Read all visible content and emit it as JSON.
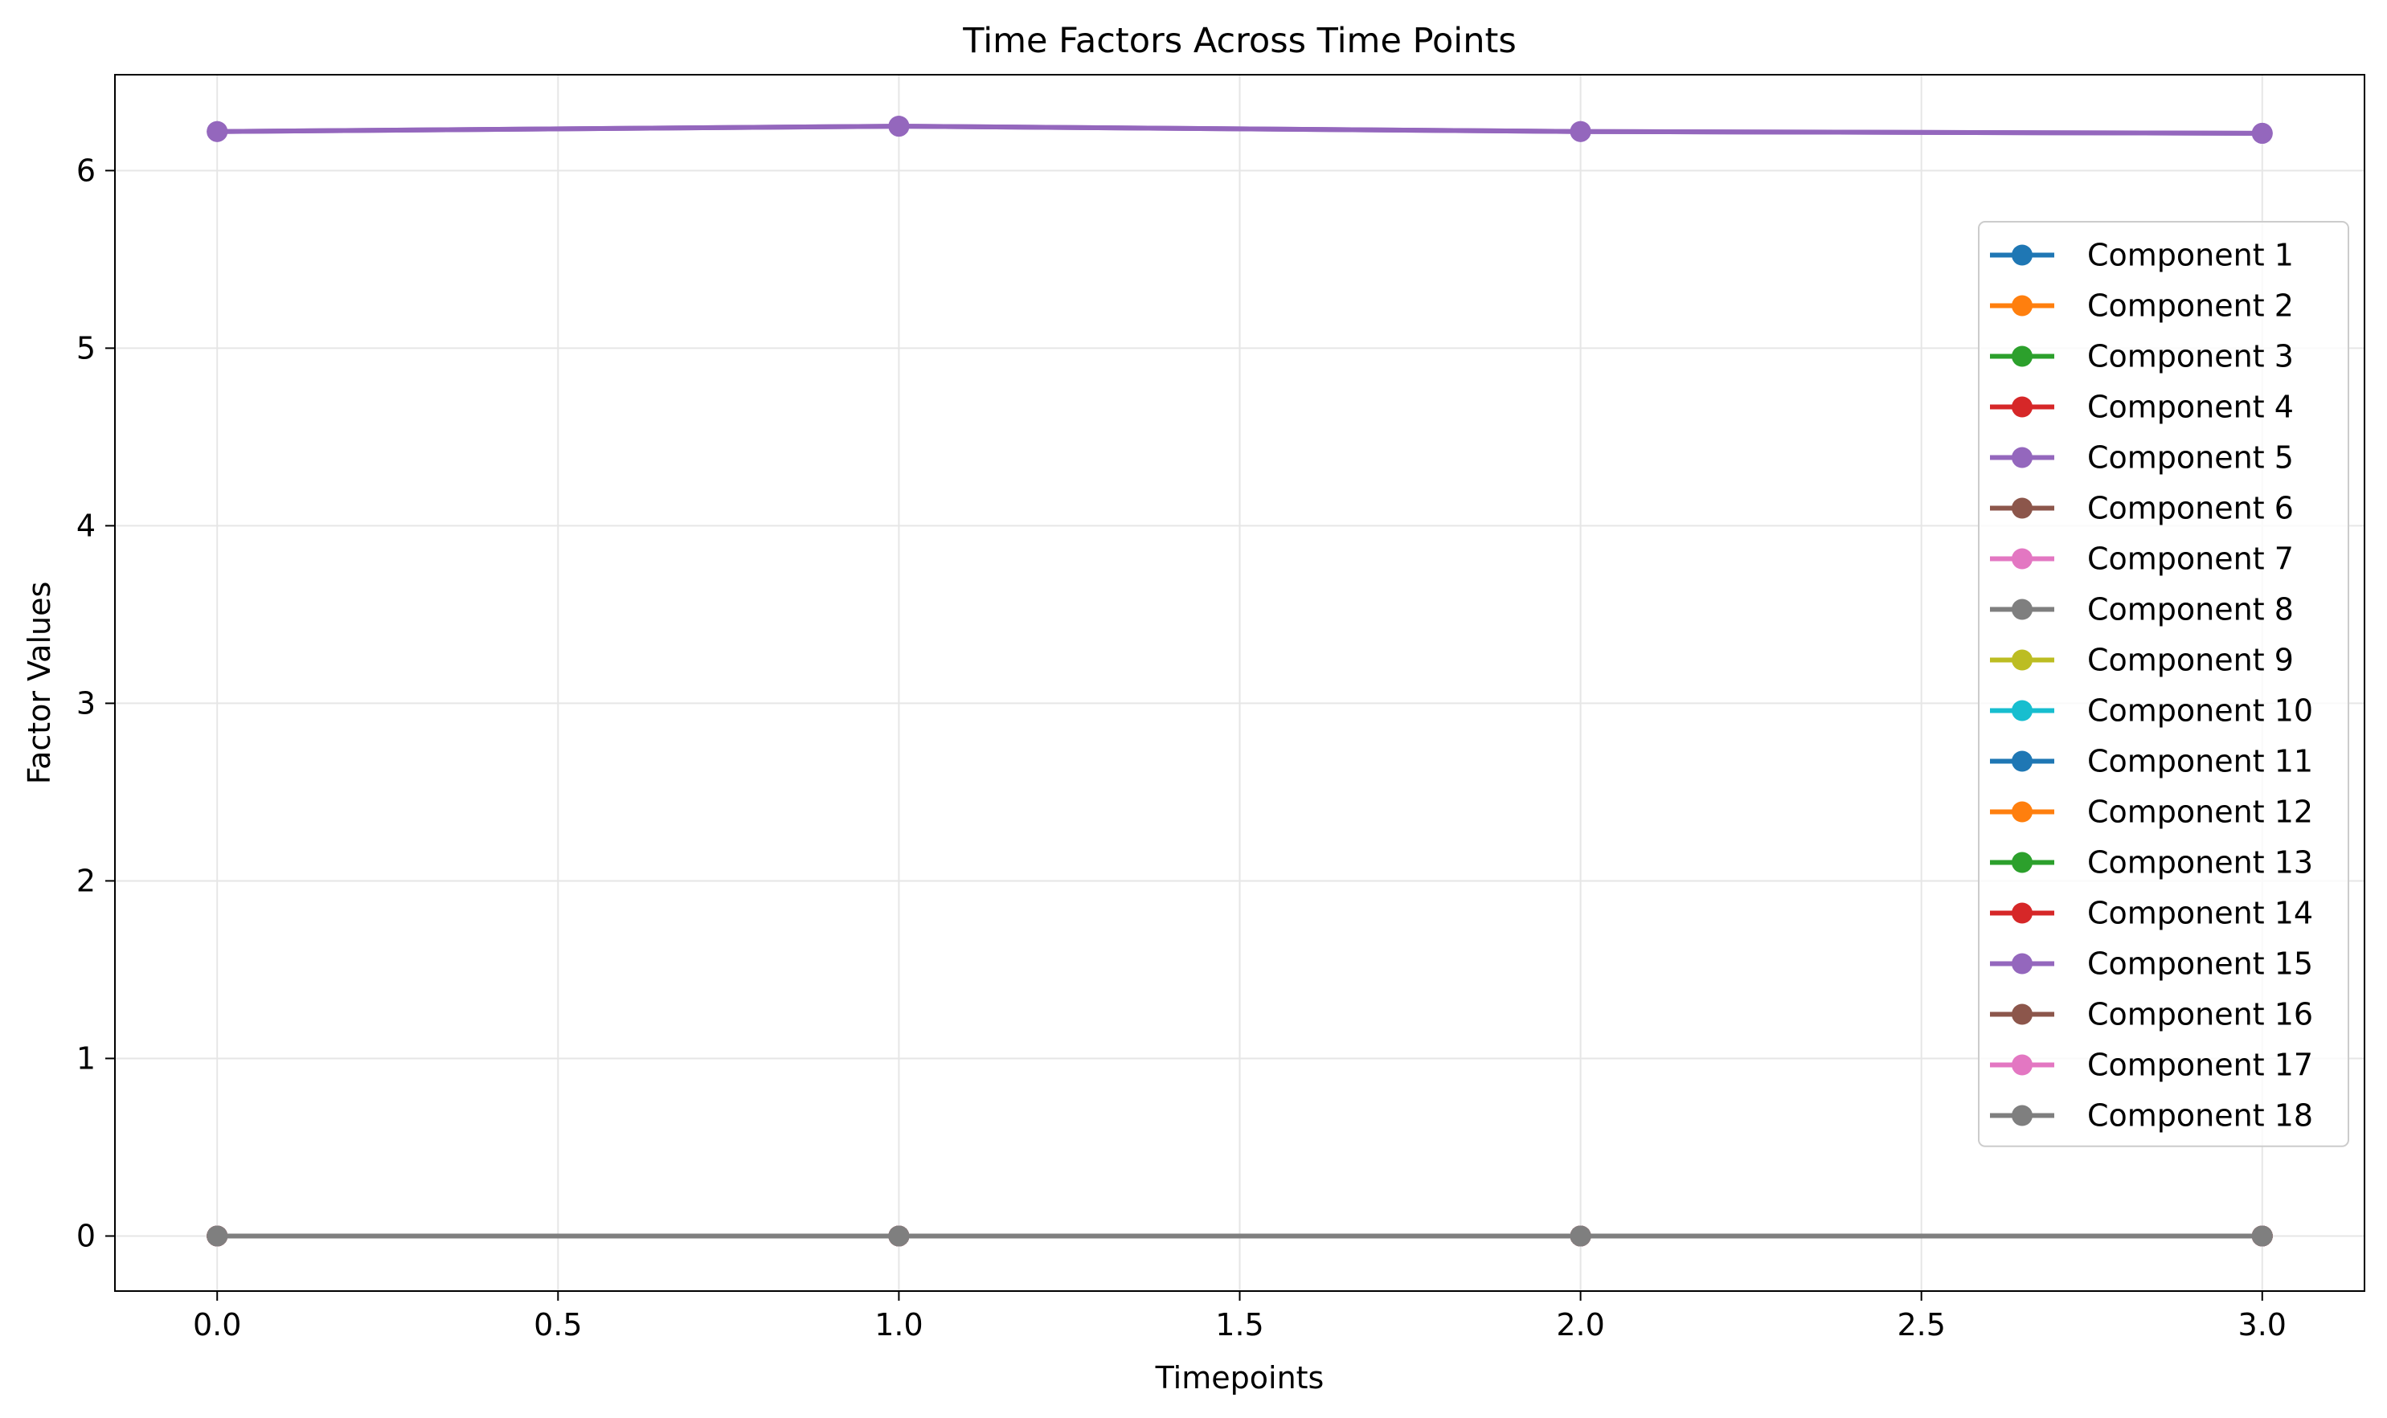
{
  "chart_data": {
    "type": "line",
    "title": "Time Factors Across Time Points",
    "xlabel": "Timepoints",
    "ylabel": "Factor Values",
    "x": [
      0,
      1,
      2,
      3
    ],
    "xlim": [
      -0.15,
      3.15
    ],
    "ylim": [
      -0.31,
      6.54
    ],
    "xticks": [
      0.0,
      0.5,
      1.0,
      1.5,
      2.0,
      2.5,
      3.0
    ],
    "xtick_labels": [
      "0.0",
      "0.5",
      "1.0",
      "1.5",
      "2.0",
      "2.5",
      "3.0"
    ],
    "yticks": [
      0,
      1,
      2,
      3,
      4,
      5,
      6
    ],
    "ytick_labels": [
      "0",
      "1",
      "2",
      "3",
      "4",
      "5",
      "6"
    ],
    "grid": true,
    "legend_position": "right",
    "series": [
      {
        "name": "Component 1",
        "color": "#1f77b4",
        "values": [
          0,
          0,
          0,
          0
        ]
      },
      {
        "name": "Component 2",
        "color": "#ff7f0e",
        "values": [
          0,
          0,
          0,
          0
        ]
      },
      {
        "name": "Component 3",
        "color": "#2ca02c",
        "values": [
          0,
          0,
          0,
          0
        ]
      },
      {
        "name": "Component 4",
        "color": "#d62728",
        "values": [
          0,
          0,
          0,
          0
        ]
      },
      {
        "name": "Component 5",
        "color": "#9467bd",
        "values": [
          6.22,
          6.25,
          6.22,
          6.21
        ]
      },
      {
        "name": "Component 6",
        "color": "#8c564b",
        "values": [
          0,
          0,
          0,
          0
        ]
      },
      {
        "name": "Component 7",
        "color": "#e377c2",
        "values": [
          0,
          0,
          0,
          0
        ]
      },
      {
        "name": "Component 8",
        "color": "#7f7f7f",
        "values": [
          0,
          0,
          0,
          0
        ]
      },
      {
        "name": "Component 9",
        "color": "#bcbd22",
        "values": [
          0,
          0,
          0,
          0
        ]
      },
      {
        "name": "Component 10",
        "color": "#17becf",
        "values": [
          0,
          0,
          0,
          0
        ]
      },
      {
        "name": "Component 11",
        "color": "#1f77b4",
        "values": [
          0,
          0,
          0,
          0
        ]
      },
      {
        "name": "Component 12",
        "color": "#ff7f0e",
        "values": [
          0,
          0,
          0,
          0
        ]
      },
      {
        "name": "Component 13",
        "color": "#2ca02c",
        "values": [
          0,
          0,
          0,
          0
        ]
      },
      {
        "name": "Component 14",
        "color": "#d62728",
        "values": [
          0,
          0,
          0,
          0
        ]
      },
      {
        "name": "Component 15",
        "color": "#9467bd",
        "values": [
          6.22,
          6.25,
          6.22,
          6.21
        ]
      },
      {
        "name": "Component 16",
        "color": "#8c564b",
        "values": [
          0,
          0,
          0,
          0
        ]
      },
      {
        "name": "Component 17",
        "color": "#e377c2",
        "values": [
          0,
          0,
          0,
          0
        ]
      },
      {
        "name": "Component 18",
        "color": "#7f7f7f",
        "values": [
          0,
          0,
          0,
          0
        ]
      }
    ]
  }
}
